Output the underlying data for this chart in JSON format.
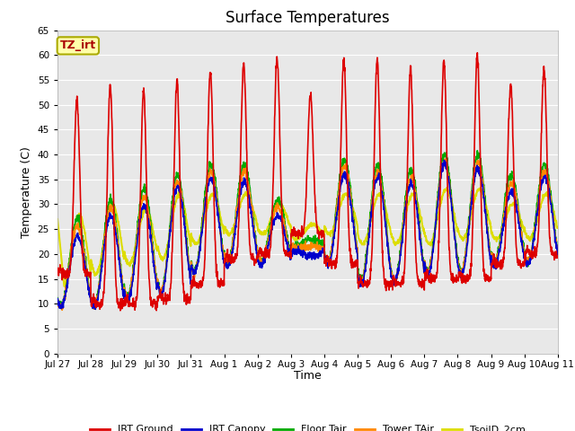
{
  "title": "Surface Temperatures",
  "ylabel": "Temperature (C)",
  "xlabel": "Time",
  "ylim": [
    0,
    65
  ],
  "yticks": [
    0,
    5,
    10,
    15,
    20,
    25,
    30,
    35,
    40,
    45,
    50,
    55,
    60,
    65
  ],
  "xtick_labels": [
    "Jul 27",
    "Jul 28",
    "Jul 29",
    "Jul 30",
    "Jul 31",
    "Aug 1",
    "Aug 2",
    "Aug 3",
    "Aug 4",
    "Aug 5",
    "Aug 6",
    "Aug 7",
    "Aug 8",
    "Aug 9",
    "Aug 10",
    "Aug 11"
  ],
  "fig_bg": "#ffffff",
  "plot_bg": "#e8e8e8",
  "grid_color": "#ffffff",
  "series": {
    "IRT Ground": {
      "color": "#dd0000",
      "lw": 1.2
    },
    "IRT Canopy": {
      "color": "#0000cc",
      "lw": 1.2
    },
    "Floor Tair": {
      "color": "#00aa00",
      "lw": 1.2
    },
    "Tower TAir": {
      "color": "#ff8800",
      "lw": 1.2
    },
    "TsoilD_2cm": {
      "color": "#dddd00",
      "lw": 1.5
    }
  },
  "irt_ground_peaks": [
    51,
    54,
    53,
    55,
    57,
    58,
    59,
    52,
    59,
    59,
    57,
    59,
    60,
    54,
    57
  ],
  "irt_ground_mins": [
    16,
    10,
    10,
    11,
    14,
    19,
    20,
    24,
    18,
    14,
    14,
    15,
    15,
    18,
    20
  ],
  "other_peaks": [
    26,
    30,
    32,
    35,
    37,
    37,
    30,
    22,
    38,
    37,
    36,
    39,
    39,
    35,
    37
  ],
  "other_mins": [
    9,
    9,
    11,
    12,
    16,
    18,
    18,
    21,
    18,
    14,
    14,
    16,
    16,
    18,
    18
  ],
  "tsoil_peaks": [
    28,
    30,
    29,
    32,
    32,
    32,
    30,
    26,
    32,
    32,
    32,
    33,
    33,
    30,
    32
  ],
  "tsoil_mins": [
    13,
    16,
    18,
    19,
    22,
    24,
    24,
    23,
    24,
    22,
    22,
    22,
    23,
    23,
    23
  ],
  "tag_text": "TZ_irt",
  "tag_bg": "#ffffaa",
  "tag_border": "#aaaa00",
  "tag_text_color": "#aa0000",
  "title_fontsize": 12,
  "axis_fontsize": 9,
  "tick_fontsize": 7.5,
  "legend_fontsize": 8
}
